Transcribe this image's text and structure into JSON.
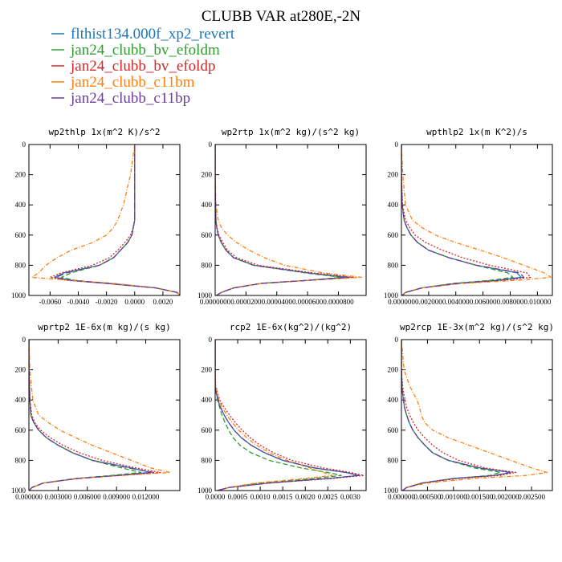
{
  "figure": {
    "title": "CLUBB VAR at280E,-2N"
  },
  "legend": [
    {
      "name": "flthist134.000f_xp2_revert",
      "color": "#1f77b4"
    },
    {
      "name": "jan24_clubb_bv_efoldm",
      "color": "#2ca02c"
    },
    {
      "name": "jan24_clubb_bv_efoldp",
      "color": "#d62728"
    },
    {
      "name": "jan24_clubb_c11bm",
      "color": "#ff7f0e"
    },
    {
      "name": "jan24_clubb_c11bp",
      "color": "#6a3d9a"
    }
  ],
  "series_styles": {
    "flthist134.000f_xp2_revert": {
      "color": "#1f77b4",
      "dash": ""
    },
    "jan24_clubb_bv_efoldm": {
      "color": "#2ca02c",
      "dash": "6,3"
    },
    "jan24_clubb_bv_efoldp": {
      "color": "#d62728",
      "dash": "2,2"
    },
    "jan24_clubb_c11bm": {
      "color": "#ff7f0e",
      "dash": "5,2,1,2"
    },
    "jan24_clubb_c11bp": {
      "color": "#6a3d9a",
      "dash": "8,4"
    }
  },
  "chart_data": [
    {
      "type": "line",
      "title": "wp2thlp  1x(m^2 K)/s^2",
      "ylim": [
        1000,
        0
      ],
      "yticks": [
        0,
        200,
        400,
        600,
        800,
        1000
      ],
      "xlim": [
        -0.0075,
        0.0032
      ],
      "xticks": [
        -0.006,
        -0.004,
        -0.002,
        0.0,
        0.002
      ],
      "xtick_labels": [
        "-0.0060",
        "-0.0040",
        "-0.0020",
        "0.0000",
        "0.0020"
      ],
      "y": [
        0,
        200,
        400,
        500,
        550,
        600,
        650,
        700,
        750,
        800,
        850,
        880,
        900,
        920,
        950,
        980,
        1000
      ],
      "series": [
        {
          "name": "flthist134.000f_xp2_revert",
          "values": [
            0.0,
            0.0,
            0.0,
            0.0,
            -0.0001,
            -0.0002,
            -0.0005,
            -0.001,
            -0.0015,
            -0.0025,
            -0.005,
            -0.0057,
            -0.0045,
            -0.002,
            0.0015,
            0.003,
            0.0032
          ]
        },
        {
          "name": "jan24_clubb_bv_efoldm",
          "values": [
            0.0,
            0.0,
            0.0,
            0.0,
            -0.0001,
            -0.0002,
            -0.0005,
            -0.001,
            -0.0015,
            -0.0025,
            -0.0045,
            -0.0052,
            -0.0042,
            -0.0018,
            0.0015,
            0.003,
            0.0032
          ]
        },
        {
          "name": "jan24_clubb_bv_efoldp",
          "values": [
            0.0,
            0.0,
            0.0,
            0.0,
            -0.0001,
            -0.0003,
            -0.0007,
            -0.0012,
            -0.0018,
            -0.003,
            -0.0052,
            -0.006,
            -0.0048,
            -0.002,
            0.0015,
            0.003,
            0.0032
          ]
        },
        {
          "name": "jan24_clubb_c11bm",
          "values": [
            0.0,
            -0.0003,
            -0.0008,
            -0.0012,
            -0.0015,
            -0.002,
            -0.003,
            -0.0045,
            -0.0055,
            -0.0063,
            -0.0068,
            -0.0073,
            -0.0045,
            -0.0015,
            0.0015,
            0.003,
            0.0032
          ]
        },
        {
          "name": "jan24_clubb_c11bp",
          "values": [
            0.0,
            0.0,
            0.0,
            0.0,
            -0.0001,
            -0.0002,
            -0.0005,
            -0.001,
            -0.0015,
            -0.0025,
            -0.0048,
            -0.0056,
            -0.0045,
            -0.002,
            0.0015,
            0.003,
            0.0032
          ]
        }
      ]
    },
    {
      "type": "line",
      "title": "wp2rtp  1x(m^2 kg)/(s^2 kg)",
      "ylim": [
        1000,
        0
      ],
      "yticks": [
        0,
        200,
        400,
        600,
        800,
        1000
      ],
      "xlim": [
        0,
        9.8e-05
      ],
      "xticks": [
        0,
        2e-05,
        4e-05,
        6e-05,
        8e-05
      ],
      "xtick_labels": [
        "0.0000000",
        "0.0000200",
        "0.0000400",
        "0.0000600",
        "0.0000800"
      ],
      "y": [
        0,
        200,
        400,
        500,
        550,
        600,
        650,
        700,
        750,
        800,
        850,
        880,
        900,
        920,
        950,
        980,
        1000
      ],
      "series": [
        {
          "name": "flthist134.000f_xp2_revert",
          "values": [
            0,
            0,
            2e-07,
            5e-07,
            1e-06,
            2e-06,
            4e-06,
            7e-06,
            1.2e-05,
            2.5e-05,
            6e-05,
            8.5e-05,
            6e-05,
            3e-05,
            1.2e-05,
            4e-06,
            8e-07
          ]
        },
        {
          "name": "jan24_clubb_bv_efoldm",
          "values": [
            0,
            0,
            2e-07,
            5e-07,
            1e-06,
            2e-06,
            4e-06,
            7e-06,
            1.2e-05,
            2.5e-05,
            5.8e-05,
            8.2e-05,
            6e-05,
            3e-05,
            1.2e-05,
            4e-06,
            8e-07
          ]
        },
        {
          "name": "jan24_clubb_bv_efoldp",
          "values": [
            0,
            0,
            2e-07,
            5e-07,
            1.2e-06,
            2.5e-06,
            5e-06,
            8e-06,
            1.4e-05,
            2.8e-05,
            6.3e-05,
            9e-05,
            6e-05,
            3e-05,
            1.2e-05,
            4e-06,
            8e-07
          ]
        },
        {
          "name": "jan24_clubb_c11bm",
          "values": [
            0,
            0,
            5e-07,
            2e-06,
            4e-06,
            8e-06,
            1.4e-05,
            2.2e-05,
            3.2e-05,
            4.5e-05,
            7e-05,
            9.5e-05,
            6e-05,
            3e-05,
            1.2e-05,
            4e-06,
            8e-07
          ]
        },
        {
          "name": "jan24_clubb_c11bp",
          "values": [
            0,
            0,
            2e-07,
            5e-07,
            1e-06,
            2e-06,
            4e-06,
            7e-06,
            1.2e-05,
            2.5e-05,
            6e-05,
            8.7e-05,
            6e-05,
            3e-05,
            1.2e-05,
            4e-06,
            8e-07
          ]
        }
      ]
    },
    {
      "type": "line",
      "title": "wpthlp2  1x(m K^2)/s",
      "ylim": [
        1000,
        0
      ],
      "yticks": [
        0,
        200,
        400,
        600,
        800,
        1000
      ],
      "xlim": [
        0,
        0.0111
      ],
      "xticks": [
        0,
        0.002,
        0.004,
        0.006,
        0.008,
        0.01
      ],
      "xtick_labels": [
        "0.000000",
        "0.002000",
        "0.004000",
        "0.006000",
        "0.008000",
        "0.010000"
      ],
      "y": [
        0,
        200,
        400,
        500,
        550,
        600,
        650,
        700,
        750,
        800,
        850,
        880,
        900,
        920,
        950,
        980,
        1000
      ],
      "series": [
        {
          "name": "flthist134.000f_xp2_revert",
          "values": [
            0,
            0,
            5e-05,
            0.0002,
            0.0004,
            0.0007,
            0.0012,
            0.002,
            0.0035,
            0.0055,
            0.0085,
            0.0088,
            0.007,
            0.004,
            0.0015,
            0.0003,
            5e-05
          ]
        },
        {
          "name": "jan24_clubb_bv_efoldm",
          "values": [
            0,
            0,
            5e-05,
            0.0002,
            0.0004,
            0.0007,
            0.0012,
            0.002,
            0.0035,
            0.0055,
            0.0078,
            0.0082,
            0.0065,
            0.0038,
            0.0015,
            0.0003,
            5e-05
          ]
        },
        {
          "name": "jan24_clubb_bv_efoldp",
          "values": [
            0,
            0,
            8e-05,
            0.0003,
            0.0006,
            0.001,
            0.0018,
            0.003,
            0.0045,
            0.0065,
            0.0092,
            0.0095,
            0.0075,
            0.0042,
            0.0015,
            0.0003,
            5e-05
          ]
        },
        {
          "name": "jan24_clubb_c11bm",
          "values": [
            0,
            0.0001,
            0.0003,
            0.0008,
            0.0015,
            0.0025,
            0.004,
            0.0058,
            0.0075,
            0.009,
            0.0105,
            0.011,
            0.0085,
            0.0045,
            0.0015,
            0.0003,
            5e-05
          ]
        },
        {
          "name": "jan24_clubb_c11bp",
          "values": [
            0,
            0,
            5e-05,
            0.0002,
            0.0004,
            0.0007,
            0.0012,
            0.002,
            0.0035,
            0.0055,
            0.0087,
            0.009,
            0.0072,
            0.0041,
            0.0015,
            0.0003,
            5e-05
          ]
        }
      ]
    },
    {
      "type": "line",
      "title": "wprtp2  1E-6x(m kg)/(s kg)",
      "ylim": [
        1000,
        0
      ],
      "yticks": [
        0,
        200,
        400,
        600,
        800,
        1000
      ],
      "xlim": [
        0,
        0.0155
      ],
      "xticks": [
        0,
        0.003,
        0.006,
        0.009,
        0.012
      ],
      "xtick_labels": [
        "0.000000",
        "0.003000",
        "0.006000",
        "0.009000",
        "0.012000"
      ],
      "y": [
        0,
        200,
        400,
        500,
        550,
        600,
        650,
        700,
        750,
        800,
        850,
        880,
        900,
        920,
        950,
        980,
        1000
      ],
      "series": [
        {
          "name": "flthist134.000f_xp2_revert",
          "values": [
            0,
            0,
            0.0001,
            0.0002,
            0.0005,
            0.001,
            0.0018,
            0.003,
            0.0045,
            0.0065,
            0.0105,
            0.0125,
            0.009,
            0.005,
            0.0015,
            0.0003,
            5e-05
          ]
        },
        {
          "name": "jan24_clubb_bv_efoldm",
          "values": [
            0,
            0,
            0.0001,
            0.0002,
            0.0005,
            0.001,
            0.0018,
            0.003,
            0.0045,
            0.0065,
            0.0095,
            0.0115,
            0.0085,
            0.0048,
            0.0015,
            0.0003,
            5e-05
          ]
        },
        {
          "name": "jan24_clubb_bv_efoldp",
          "values": [
            0,
            0,
            0.0001,
            0.0003,
            0.0006,
            0.0012,
            0.0022,
            0.0035,
            0.0052,
            0.0075,
            0.011,
            0.0135,
            0.0095,
            0.005,
            0.0015,
            0.0003,
            5e-05
          ]
        },
        {
          "name": "jan24_clubb_c11bm",
          "values": [
            0,
            0.0001,
            0.0004,
            0.001,
            0.002,
            0.0032,
            0.0048,
            0.0065,
            0.0085,
            0.0105,
            0.0125,
            0.0145,
            0.0095,
            0.005,
            0.0015,
            0.0003,
            5e-05
          ]
        },
        {
          "name": "jan24_clubb_c11bp",
          "values": [
            0,
            0,
            0.0001,
            0.0002,
            0.0005,
            0.001,
            0.0018,
            0.003,
            0.0045,
            0.0065,
            0.0102,
            0.0128,
            0.0092,
            0.005,
            0.0015,
            0.0003,
            5e-05
          ]
        }
      ]
    },
    {
      "type": "line",
      "title": "rcp2  1E-6x(kg^2)/(kg^2)",
      "ylim": [
        1000,
        0
      ],
      "yticks": [
        0,
        200,
        400,
        600,
        800,
        1000
      ],
      "xlim": [
        0,
        0.00335
      ],
      "xticks": [
        0,
        0.0005,
        0.001,
        0.0015,
        0.002,
        0.0025,
        0.003
      ],
      "xtick_labels": [
        "0.0000",
        "0.0005",
        "0.0010",
        "0.0015",
        "0.0020",
        "0.0025",
        "0.0030"
      ],
      "y": [
        0,
        200,
        300,
        350,
        400,
        450,
        500,
        550,
        600,
        650,
        700,
        750,
        800,
        850,
        880,
        900,
        920,
        950,
        980,
        1000
      ],
      "series": [
        {
          "name": "flthist134.000f_xp2_revert",
          "values": [
            0,
            0,
            0,
            2e-05,
            6e-05,
            0.00012,
            0.0002,
            0.0003,
            0.00042,
            0.00058,
            0.0008,
            0.0011,
            0.0015,
            0.0022,
            0.0029,
            0.0032,
            0.0025,
            0.0012,
            0.0003,
            5e-05
          ]
        },
        {
          "name": "jan24_clubb_bv_efoldm",
          "values": [
            0,
            0,
            0,
            2e-05,
            5e-05,
            0.0001,
            0.00015,
            0.00022,
            0.0003,
            0.0004,
            0.00055,
            0.0008,
            0.0012,
            0.0019,
            0.0025,
            0.0028,
            0.0022,
            0.001,
            0.0003,
            5e-05
          ]
        },
        {
          "name": "jan24_clubb_bv_efoldp",
          "values": [
            0,
            0,
            1e-05,
            5e-05,
            0.0001,
            0.0002,
            0.00032,
            0.00045,
            0.0006,
            0.00078,
            0.001,
            0.0013,
            0.0017,
            0.0024,
            0.003,
            0.0033,
            0.0026,
            0.0012,
            0.0003,
            5e-05
          ]
        },
        {
          "name": "jan24_clubb_c11bm",
          "values": [
            0,
            0,
            1e-05,
            4e-05,
            8e-05,
            0.00016,
            0.00026,
            0.00038,
            0.00052,
            0.0007,
            0.00092,
            0.0012,
            0.0016,
            0.0021,
            0.0024,
            0.0026,
            0.002,
            0.0009,
            0.0003,
            5e-05
          ]
        },
        {
          "name": "jan24_clubb_c11bp",
          "values": [
            0,
            0,
            0,
            2e-05,
            6e-05,
            0.00012,
            0.0002,
            0.0003,
            0.00042,
            0.00058,
            0.0008,
            0.0011,
            0.0015,
            0.0022,
            0.0029,
            0.0032,
            0.0025,
            0.0012,
            0.0003,
            5e-05
          ]
        }
      ]
    },
    {
      "type": "line",
      "title": "wp2rcp  1E-3x(m^2 kg)/(s^2 kg)",
      "ylim": [
        1000,
        0
      ],
      "yticks": [
        0,
        200,
        400,
        600,
        800,
        1000
      ],
      "xlim": [
        0,
        0.0029
      ],
      "xticks": [
        0,
        0.0005,
        0.001,
        0.0015,
        0.002,
        0.0025
      ],
      "xtick_labels": [
        "0.000000",
        "0.000500",
        "0.001000",
        "0.001500",
        "0.002000",
        "0.002500"
      ],
      "y": [
        0,
        200,
        300,
        350,
        400,
        450,
        500,
        550,
        600,
        650,
        700,
        750,
        800,
        850,
        880,
        900,
        920,
        950,
        980,
        1000
      ],
      "series": [
        {
          "name": "flthist134.000f_xp2_revert",
          "values": [
            0,
            0,
            1e-05,
            2e-05,
            4e-05,
            6e-05,
            0.0001,
            0.00015,
            0.00022,
            0.00032,
            0.00045,
            0.0006,
            0.0009,
            0.0015,
            0.0021,
            0.0018,
            0.001,
            0.0004,
            0.0001,
            2e-05
          ]
        },
        {
          "name": "jan24_clubb_bv_efoldm",
          "values": [
            0,
            0,
            1e-05,
            2e-05,
            4e-05,
            6e-05,
            0.0001,
            0.00015,
            0.00022,
            0.00032,
            0.00045,
            0.0006,
            0.0009,
            0.0014,
            0.0019,
            0.0017,
            0.001,
            0.0004,
            0.0001,
            2e-05
          ]
        },
        {
          "name": "jan24_clubb_bv_efoldp",
          "values": [
            0,
            0,
            2e-05,
            4e-05,
            7e-05,
            0.0001,
            0.00016,
            0.00023,
            0.00032,
            0.00045,
            0.0006,
            0.0008,
            0.0011,
            0.0016,
            0.0022,
            0.0019,
            0.0011,
            0.0004,
            0.0001,
            2e-05
          ]
        },
        {
          "name": "jan24_clubb_c11bm",
          "values": [
            0,
            5e-05,
            0.00015,
            0.00022,
            0.0003,
            0.00035,
            0.00038,
            0.00045,
            0.0006,
            0.0009,
            0.0013,
            0.0017,
            0.0021,
            0.0025,
            0.0028,
            0.0024,
            0.0014,
            0.0005,
            0.0001,
            2e-05
          ]
        },
        {
          "name": "jan24_clubb_c11bp",
          "values": [
            0,
            0,
            1e-05,
            2e-05,
            4e-05,
            6e-05,
            0.0001,
            0.00015,
            0.00022,
            0.00032,
            0.00045,
            0.0006,
            0.0009,
            0.0015,
            0.0021,
            0.0018,
            0.001,
            0.0004,
            0.0001,
            2e-05
          ]
        }
      ]
    }
  ]
}
